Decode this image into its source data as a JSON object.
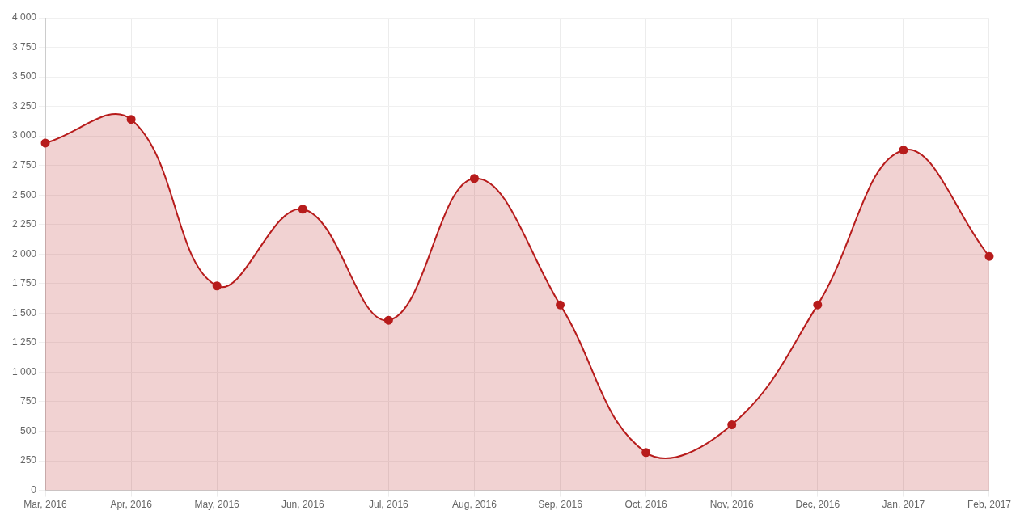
{
  "chart_data": {
    "type": "area",
    "categories": [
      "Mar, 2016",
      "Apr, 2016",
      "May, 2016",
      "Jun, 2016",
      "Jul, 2016",
      "Aug, 2016",
      "Sep, 2016",
      "Oct, 2016",
      "Nov, 2016",
      "Dec, 2016",
      "Jan, 2017",
      "Feb, 2017"
    ],
    "series": [
      {
        "color": "#b71c1c",
        "values": [
          2940,
          3140,
          1730,
          2380,
          1440,
          2640,
          1570,
          320,
          555,
          1570,
          2880,
          1980
        ]
      }
    ],
    "ylim": [
      0,
      4000
    ],
    "yticks": [
      0,
      250,
      500,
      750,
      {
        "value": 1000,
        "label": "1 000"
      },
      {
        "value": 1250,
        "label": "1 250"
      },
      {
        "value": 1500,
        "label": "1 500"
      },
      {
        "value": 1750,
        "label": "1 750"
      },
      {
        "value": 2000,
        "label": "2 000"
      },
      {
        "value": 2250,
        "label": "2 250"
      },
      {
        "value": 2500,
        "label": "2 500"
      },
      {
        "value": 2750,
        "label": "2 750"
      },
      {
        "value": 3000,
        "label": "3 000"
      },
      {
        "value": 3250,
        "label": "3 250"
      },
      {
        "value": 3500,
        "label": "3 500"
      },
      {
        "value": 3750,
        "label": "3 750"
      },
      {
        "value": 4000,
        "label": "4 000"
      }
    ],
    "grid": true,
    "legend": false,
    "marker": "circle"
  }
}
